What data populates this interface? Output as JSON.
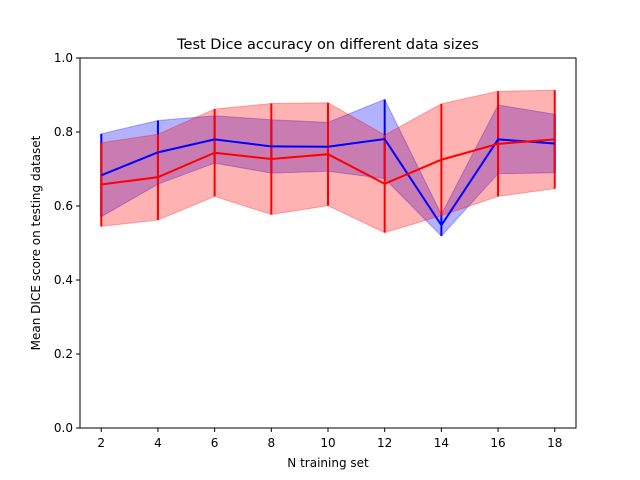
{
  "chart_data": {
    "type": "line",
    "title": "Test Dice accuracy on different data sizes",
    "xlabel": "N training set",
    "ylabel": "Mean DICE score on testing dataset",
    "x": [
      2,
      4,
      6,
      8,
      10,
      12,
      14,
      16,
      18
    ],
    "xlim": [
      1.25,
      18.75
    ],
    "ylim": [
      0.0,
      1.0
    ],
    "xticks": [
      "2",
      "4",
      "6",
      "8",
      "10",
      "12",
      "14",
      "16",
      "18"
    ],
    "yticks": [
      "0.0",
      "0.2",
      "0.4",
      "0.6",
      "0.8",
      "1.0"
    ],
    "grid": false,
    "series": [
      {
        "color": "#0000ff",
        "band_color": "#0000ff",
        "values": [
          0.683,
          0.745,
          0.78,
          0.761,
          0.76,
          0.781,
          0.548,
          0.78,
          0.769
        ],
        "upper": [
          0.795,
          0.831,
          0.844,
          0.833,
          0.826,
          0.888,
          0.577,
          0.873,
          0.848
        ],
        "lower": [
          0.571,
          0.659,
          0.716,
          0.689,
          0.694,
          0.674,
          0.519,
          0.687,
          0.69
        ]
      },
      {
        "color": "#ff0000",
        "band_color": "#ff0000",
        "values": [
          0.658,
          0.678,
          0.744,
          0.727,
          0.74,
          0.66,
          0.725,
          0.768,
          0.78
        ],
        "upper": [
          0.771,
          0.794,
          0.862,
          0.877,
          0.879,
          0.792,
          0.876,
          0.91,
          0.913
        ],
        "lower": [
          0.545,
          0.562,
          0.626,
          0.577,
          0.601,
          0.528,
          0.574,
          0.626,
          0.647
        ]
      }
    ]
  }
}
